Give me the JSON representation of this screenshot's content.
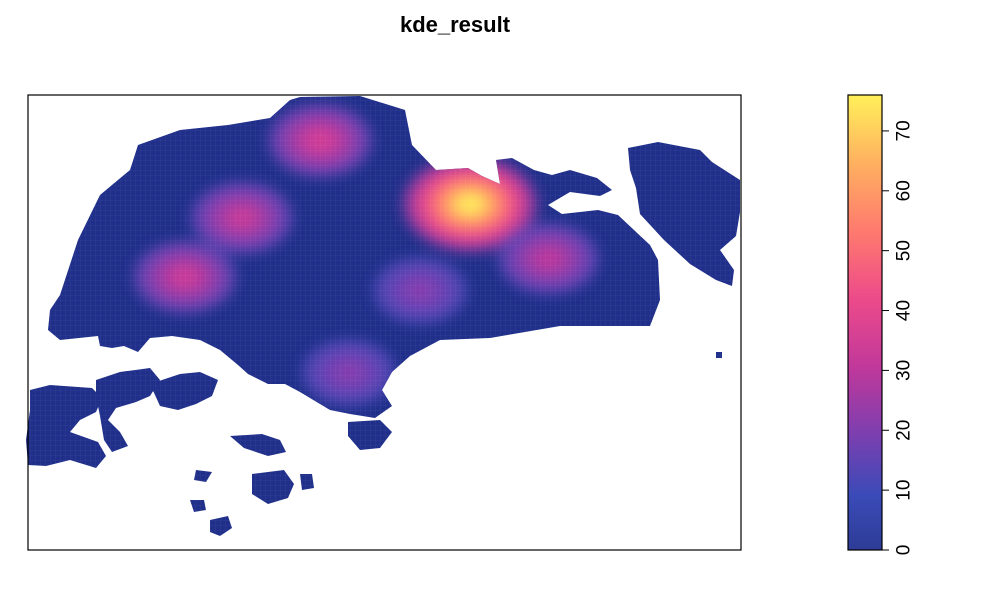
{
  "chart_data": {
    "type": "heatmap",
    "title": "kde_result",
    "xlabel": "",
    "ylabel": "",
    "legend": {
      "position": "right",
      "range": [
        0,
        76
      ],
      "ticks": [
        0,
        10,
        20,
        30,
        40,
        50,
        60,
        70
      ],
      "tick_labels": [
        "0",
        "10",
        "20",
        "30",
        "40",
        "50",
        "60",
        "70"
      ],
      "colors": [
        "#2d3c96",
        "#3a4bb8",
        "#7a3fb0",
        "#c0389b",
        "#ec4a8a",
        "#ff7a6e",
        "#ffb060",
        "#fff05a"
      ]
    },
    "grid": false,
    "hotspots": [
      {
        "x": 0.62,
        "y": 0.76,
        "value": 76
      },
      {
        "x": 0.41,
        "y": 0.9,
        "value": 38
      },
      {
        "x": 0.3,
        "y": 0.73,
        "value": 35
      },
      {
        "x": 0.22,
        "y": 0.6,
        "value": 36
      },
      {
        "x": 0.73,
        "y": 0.64,
        "value": 33
      },
      {
        "x": 0.55,
        "y": 0.57,
        "value": 24
      },
      {
        "x": 0.45,
        "y": 0.39,
        "value": 24
      }
    ]
  }
}
